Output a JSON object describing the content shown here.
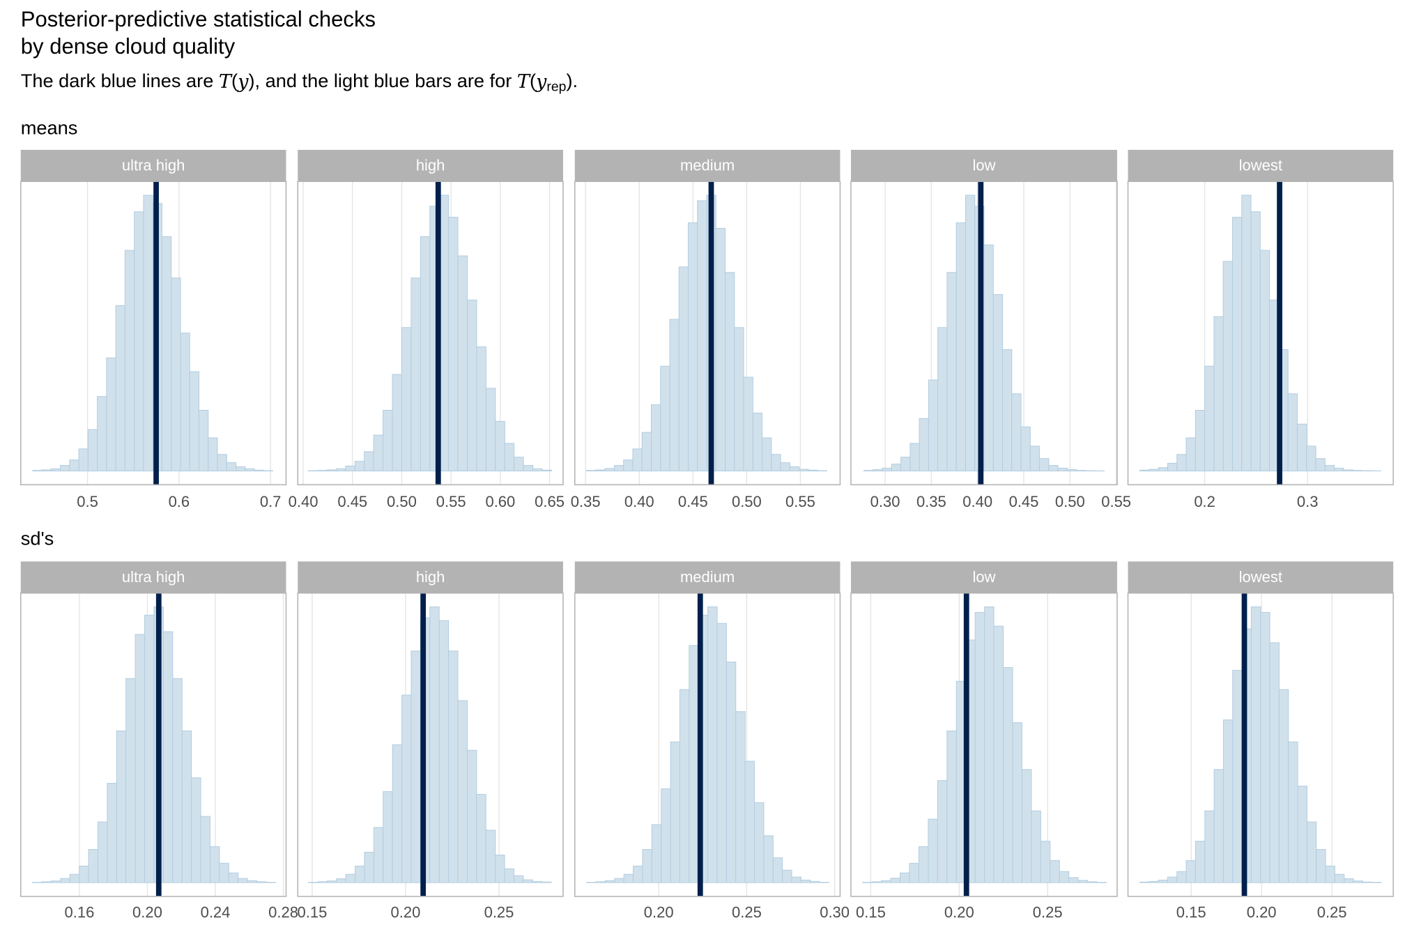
{
  "title": [
    "Posterior-predictive statistical checks",
    "by dense cloud quality"
  ],
  "subtitle": {
    "a": "The dark blue lines are ",
    "t1": "T",
    "p1": "(",
    "y1": "y",
    "q1": ")",
    "b": ", and the light blue bars are for ",
    "t2": "T",
    "p2": "(",
    "y2": "y",
    "sub": "rep",
    "q2": ")",
    "end": "."
  },
  "sections": [
    "means",
    "sd's"
  ],
  "chart_data": [
    {
      "type": "histogram",
      "strip": "ultra high",
      "color": "#d1e1ec",
      "edgecolor": "#b3cde0",
      "observed_color": "#011f4b",
      "observed": 0.575,
      "bins": [
        0.44,
        0.4501,
        0.4602,
        0.4703,
        0.4804,
        0.4905,
        0.5006,
        0.5107,
        0.5208,
        0.5309,
        0.541,
        0.5511,
        0.5612,
        0.5713,
        0.5814,
        0.5915,
        0.6016,
        0.6117,
        0.6218,
        0.6319,
        0.642,
        0.6521,
        0.6622,
        0.6723,
        0.6824,
        0.6925,
        0.7026
      ],
      "values": [
        0.2,
        0.4,
        0.8,
        2,
        4,
        8,
        15,
        27,
        41,
        60,
        80,
        94,
        100,
        97,
        85,
        70,
        50,
        36,
        22,
        12,
        6,
        3,
        1.5,
        0.8,
        0.3,
        0.1
      ],
      "xlim": [
        0.427,
        0.717
      ],
      "xticks": [
        0.5,
        0.6,
        0.7
      ],
      "ylim": [
        -5,
        105
      ],
      "grid": true
    },
    {
      "type": "histogram",
      "strip": "high",
      "color": "#d1e1ec",
      "edgecolor": "#b3cde0",
      "observed_color": "#011f4b",
      "observed": 0.537,
      "bins": [
        0.405,
        0.4145,
        0.424,
        0.4335,
        0.443,
        0.4525,
        0.462,
        0.4715,
        0.481,
        0.4905,
        0.5,
        0.5095,
        0.519,
        0.5285,
        0.538,
        0.5475,
        0.557,
        0.5665,
        0.576,
        0.5855,
        0.595,
        0.6045,
        0.614,
        0.6235,
        0.633,
        0.6425,
        0.652
      ],
      "values": [
        0.1,
        0.2,
        0.4,
        0.8,
        1.8,
        3.5,
        7,
        13,
        22,
        35,
        52,
        70,
        85,
        96,
        100,
        92,
        78,
        62,
        45,
        30,
        18,
        10,
        5,
        2,
        0.8,
        0.3
      ],
      "xlim": [
        0.3945,
        0.6637
      ],
      "xticks": [
        {
          "value": 0.4,
          "label": "0.40"
        },
        {
          "value": 0.45,
          "label": "0.45"
        },
        {
          "value": 0.5,
          "label": "0.50"
        },
        {
          "value": 0.55,
          "label": "0.55"
        },
        {
          "value": 0.6,
          "label": "0.60"
        },
        {
          "value": 0.65,
          "label": "0.65"
        }
      ],
      "ylim": [
        -5,
        105
      ],
      "grid": true
    },
    {
      "type": "histogram",
      "strip": "medium",
      "color": "#d1e1ec",
      "edgecolor": "#b3cde0",
      "observed_color": "#011f4b",
      "observed": 0.467,
      "bins": [
        0.351,
        0.3596,
        0.3682,
        0.3768,
        0.3854,
        0.394,
        0.4026,
        0.4112,
        0.4198,
        0.4284,
        0.437,
        0.4456,
        0.4542,
        0.4628,
        0.4714,
        0.48,
        0.4886,
        0.4972,
        0.5058,
        0.5144,
        0.523,
        0.5316,
        0.5402,
        0.5488,
        0.5574,
        0.566,
        0.5746
      ],
      "values": [
        0.2,
        0.4,
        0.9,
        2,
        4,
        8,
        14,
        24,
        38,
        55,
        74,
        90,
        98,
        100,
        88,
        72,
        52,
        34,
        21,
        12,
        6,
        3,
        1.5,
        0.6,
        0.3,
        0.1
      ],
      "xlim": [
        0.34,
        0.587
      ],
      "xticks": [
        0.35,
        {
          "value": 0.4,
          "label": "0.40"
        },
        0.45,
        {
          "value": 0.5,
          "label": "0.50"
        },
        0.55
      ],
      "ylim": [
        -5,
        105
      ],
      "grid": true
    },
    {
      "type": "histogram",
      "strip": "low",
      "color": "#d1e1ec",
      "edgecolor": "#b3cde0",
      "observed_color": "#011f4b",
      "observed": 0.4035,
      "bins": [
        0.277,
        0.287,
        0.297,
        0.307,
        0.317,
        0.327,
        0.337,
        0.347,
        0.357,
        0.367,
        0.377,
        0.387,
        0.397,
        0.407,
        0.417,
        0.427,
        0.437,
        0.447,
        0.457,
        0.467,
        0.477,
        0.487,
        0.497,
        0.507,
        0.517,
        0.527,
        0.537
      ],
      "values": [
        0.2,
        0.5,
        1,
        2.5,
        5,
        10,
        19,
        33,
        52,
        72,
        90,
        100,
        96,
        82,
        64,
        44,
        28,
        16,
        9,
        4.5,
        2,
        1,
        0.5,
        0.2,
        0.1,
        0.05
      ],
      "xlim": [
        0.263,
        0.551
      ],
      "xticks": [
        {
          "value": 0.3,
          "label": "0.30"
        },
        0.35,
        {
          "value": 0.4,
          "label": "0.40"
        },
        0.45,
        {
          "value": 0.5,
          "label": "0.50"
        },
        0.55
      ],
      "ylim": [
        -5,
        105
      ],
      "grid": true
    },
    {
      "type": "histogram",
      "strip": "lowest",
      "color": "#d1e1ec",
      "edgecolor": "#b3cde0",
      "observed_color": "#011f4b",
      "observed": 0.2728,
      "bins": [
        0.137,
        0.146,
        0.155,
        0.164,
        0.173,
        0.182,
        0.191,
        0.2,
        0.209,
        0.218,
        0.227,
        0.236,
        0.245,
        0.254,
        0.263,
        0.272,
        0.281,
        0.29,
        0.299,
        0.308,
        0.317,
        0.326,
        0.335,
        0.344,
        0.353,
        0.362,
        0.371
      ],
      "values": [
        0.3,
        0.6,
        1.2,
        2.8,
        6,
        12,
        22,
        38,
        56,
        76,
        92,
        100,
        94,
        80,
        62,
        44,
        28,
        17,
        9,
        4.5,
        2,
        1,
        0.4,
        0.2,
        0.1,
        0.05
      ],
      "xlim": [
        0.1254,
        0.3833
      ],
      "xticks": [
        0.2,
        0.3
      ],
      "ylim": [
        -5,
        105
      ],
      "grid": true
    },
    {
      "type": "histogram",
      "strip": "ultra high",
      "color": "#d1e1ec",
      "edgecolor": "#b3cde0",
      "observed_color": "#011f4b",
      "observed": 0.2067,
      "bins": [
        0.1324,
        0.1379,
        0.1434,
        0.1489,
        0.1544,
        0.1599,
        0.1654,
        0.1709,
        0.1764,
        0.1819,
        0.1874,
        0.1929,
        0.1984,
        0.2039,
        0.2094,
        0.2149,
        0.2204,
        0.2259,
        0.2314,
        0.2369,
        0.2424,
        0.2479,
        0.2534,
        0.2589,
        0.2644,
        0.2699,
        0.2754
      ],
      "values": [
        0.1,
        0.3,
        0.6,
        1.5,
        3,
        6,
        12,
        22,
        36,
        55,
        74,
        90,
        97,
        100,
        91,
        74,
        55,
        38,
        24,
        13,
        7,
        3.5,
        1.5,
        0.7,
        0.3,
        0.1
      ],
      "xlim": [
        0.1255,
        0.2816
      ],
      "xticks": [
        0.16,
        {
          "value": 0.2,
          "label": "0.20"
        },
        0.24,
        0.28
      ],
      "ylim": [
        -5,
        105
      ],
      "grid": true
    },
    {
      "type": "histogram",
      "strip": "high",
      "color": "#d1e1ec",
      "edgecolor": "#b3cde0",
      "observed_color": "#011f4b",
      "observed": 0.2094,
      "bins": [
        0.148,
        0.153,
        0.158,
        0.163,
        0.168,
        0.173,
        0.178,
        0.183,
        0.188,
        0.193,
        0.198,
        0.203,
        0.208,
        0.213,
        0.218,
        0.223,
        0.228,
        0.233,
        0.238,
        0.243,
        0.248,
        0.253,
        0.258,
        0.263,
        0.268,
        0.273,
        0.278
      ],
      "values": [
        0.1,
        0.3,
        0.6,
        1.4,
        3,
        6,
        11,
        20,
        33,
        50,
        68,
        84,
        96,
        100,
        95,
        84,
        66,
        48,
        32,
        19,
        10,
        5,
        2.5,
        1,
        0.4,
        0.2
      ],
      "xlim": [
        0.1423,
        0.2843
      ],
      "xticks": [
        0.15,
        {
          "value": 0.2,
          "label": "0.20"
        },
        0.25
      ],
      "ylim": [
        -5,
        105
      ],
      "grid": true
    },
    {
      "type": "histogram",
      "strip": "medium",
      "color": "#d1e1ec",
      "edgecolor": "#b3cde0",
      "observed_color": "#011f4b",
      "observed": 0.2236,
      "bins": [
        0.159,
        0.1643,
        0.1696,
        0.1749,
        0.1802,
        0.1855,
        0.1908,
        0.1961,
        0.2014,
        0.2067,
        0.212,
        0.2173,
        0.2226,
        0.2279,
        0.2332,
        0.2385,
        0.2438,
        0.2491,
        0.2544,
        0.2597,
        0.265,
        0.2703,
        0.2756,
        0.2809,
        0.2862,
        0.2915,
        0.2968
      ],
      "values": [
        0.1,
        0.3,
        0.7,
        1.5,
        3,
        6,
        12,
        21,
        34,
        51,
        70,
        86,
        97,
        100,
        94,
        80,
        62,
        44,
        29,
        17,
        9,
        4.5,
        2,
        0.9,
        0.4,
        0.1
      ],
      "xlim": [
        0.1523,
        0.3031
      ],
      "xticks": [
        {
          "value": 0.2,
          "label": "0.20"
        },
        0.25,
        {
          "value": 0.3,
          "label": "0.30"
        }
      ],
      "ylim": [
        -5,
        105
      ],
      "grid": true
    },
    {
      "type": "histogram",
      "strip": "low",
      "color": "#d1e1ec",
      "edgecolor": "#b3cde0",
      "observed_color": "#011f4b",
      "observed": 0.2041,
      "bins": [
        0.1454,
        0.1507,
        0.156,
        0.1613,
        0.1666,
        0.1719,
        0.1772,
        0.1825,
        0.1878,
        0.1931,
        0.1984,
        0.2037,
        0.209,
        0.2143,
        0.2196,
        0.2249,
        0.2302,
        0.2355,
        0.2408,
        0.2461,
        0.2514,
        0.2567,
        0.262,
        0.2673,
        0.2726,
        0.2779,
        0.2832
      ],
      "values": [
        0.1,
        0.3,
        0.7,
        1.6,
        3.5,
        7,
        13,
        23,
        37,
        55,
        73,
        88,
        98,
        100,
        93,
        78,
        58,
        41,
        26,
        15,
        8,
        4,
        1.8,
        0.8,
        0.3,
        0.1
      ],
      "xlim": [
        0.1388,
        0.2893
      ],
      "xticks": [
        0.15,
        {
          "value": 0.2,
          "label": "0.20"
        },
        0.25
      ],
      "ylim": [
        -5,
        105
      ],
      "grid": true
    },
    {
      "type": "histogram",
      "strip": "lowest",
      "color": "#d1e1ec",
      "edgecolor": "#b3cde0",
      "observed_color": "#011f4b",
      "observed": 0.1878,
      "bins": [
        0.1135,
        0.1201,
        0.1267,
        0.1333,
        0.1399,
        0.1465,
        0.1531,
        0.1597,
        0.1663,
        0.1729,
        0.1795,
        0.1861,
        0.1927,
        0.1993,
        0.2059,
        0.2125,
        0.2191,
        0.2257,
        0.2323,
        0.2389,
        0.2455,
        0.2521,
        0.2587,
        0.2653,
        0.2719,
        0.2785,
        0.2851
      ],
      "values": [
        0.2,
        0.4,
        0.9,
        2,
        4,
        8,
        15,
        26,
        41,
        59,
        77,
        92,
        100,
        98,
        87,
        70,
        51,
        35,
        22,
        12,
        6,
        3,
        1.4,
        0.6,
        0.2,
        0.1
      ],
      "xlim": [
        0.1051,
        0.2936
      ],
      "xticks": [
        0.15,
        {
          "value": 0.2,
          "label": "0.20"
        },
        0.25
      ],
      "ylim": [
        -5,
        105
      ],
      "grid": true
    }
  ]
}
